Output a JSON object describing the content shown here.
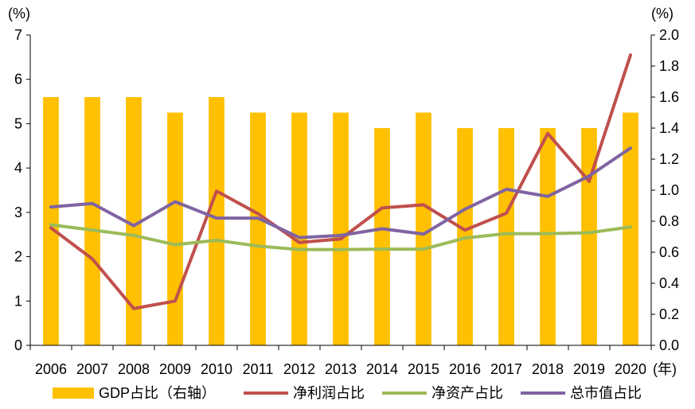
{
  "chart_data": {
    "type": "bar+line",
    "title": "",
    "left_axis": {
      "unit": "(%)",
      "min": 0,
      "max": 7,
      "step": 1,
      "ticks": [
        "0",
        "1",
        "2",
        "3",
        "4",
        "5",
        "6",
        "7"
      ]
    },
    "right_axis": {
      "unit": "(%)",
      "min": 0.0,
      "max": 2.0,
      "step": 0.2,
      "ticks": [
        "0.0",
        "0.2",
        "0.4",
        "0.6",
        "0.8",
        "1.0",
        "1.2",
        "1.4",
        "1.6",
        "1.8",
        "2.0"
      ]
    },
    "x_unit": "(年)",
    "categories": [
      "2006",
      "2007",
      "2008",
      "2009",
      "2010",
      "2011",
      "2012",
      "2013",
      "2014",
      "2015",
      "2016",
      "2017",
      "2018",
      "2019",
      "2020"
    ],
    "bar_series": {
      "name": "GDP占比（右轴）",
      "axis": "right",
      "color": "#FFC000",
      "values": [
        1.6,
        1.6,
        1.6,
        1.5,
        1.6,
        1.5,
        1.5,
        1.5,
        1.4,
        1.5,
        1.4,
        1.4,
        1.4,
        1.4,
        1.5
      ]
    },
    "line_series": [
      {
        "name": "净利润占比",
        "axis": "left",
        "color": "#C0504D",
        "values": [
          2.65,
          1.95,
          0.83,
          1.0,
          3.48,
          2.97,
          2.32,
          2.4,
          3.1,
          3.17,
          2.6,
          2.98,
          4.78,
          3.7,
          6.55
        ]
      },
      {
        "name": "净资产占比",
        "axis": "left",
        "color": "#9BBB59",
        "values": [
          2.72,
          2.6,
          2.48,
          2.27,
          2.37,
          2.24,
          2.16,
          2.16,
          2.17,
          2.17,
          2.42,
          2.52,
          2.52,
          2.54,
          2.67
        ]
      },
      {
        "name": "总市值占比",
        "axis": "left",
        "color": "#8064A2",
        "values": [
          3.12,
          3.2,
          2.7,
          3.24,
          2.87,
          2.87,
          2.43,
          2.48,
          2.63,
          2.51,
          3.07,
          3.52,
          3.36,
          3.82,
          4.45
        ]
      }
    ],
    "legend": {
      "position": "bottom"
    },
    "grid": false
  }
}
